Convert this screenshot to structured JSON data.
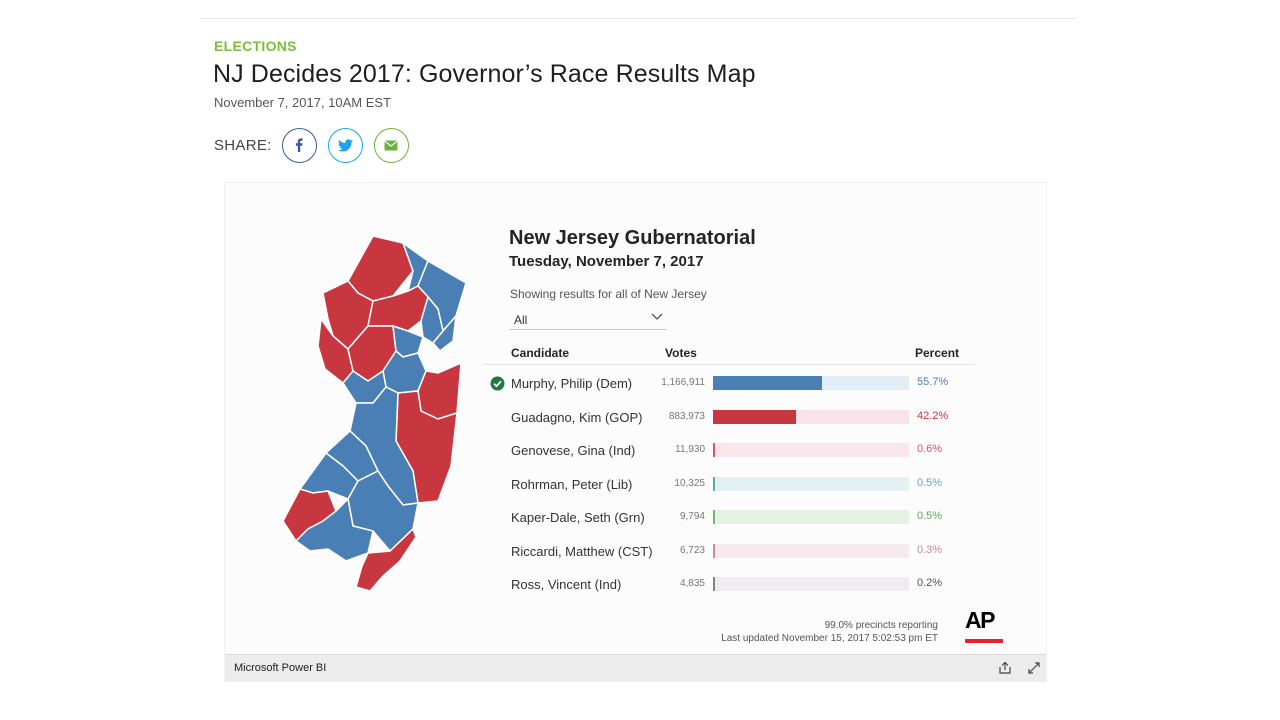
{
  "article": {
    "kicker": "ELECTIONS",
    "title": "NJ Decides 2017: Governor’s Race Results Map",
    "date": "November 7, 2017, 10AM EST"
  },
  "share": {
    "label": "SHARE:",
    "buttons": [
      {
        "icon": "facebook-icon",
        "color": "#3b5998"
      },
      {
        "icon": "twitter-icon",
        "color": "#1da1f2"
      },
      {
        "icon": "email-icon",
        "color": "#6ab23e"
      }
    ]
  },
  "colors": {
    "dem": "#4a7fb5",
    "gop": "#c8373f",
    "accent_green": "#7bbd3c"
  },
  "map": {
    "description_counties": {
      "dem_color": "#4a7fb5",
      "gop_color": "#c8373f"
    }
  },
  "viz": {
    "title": "New Jersey Gubernatorial",
    "subtitle": "Tuesday, November 7, 2017",
    "filter_label": "Showing results for all of New Jersey",
    "filter_value": "All",
    "columns": {
      "candidate": "Candidate",
      "votes": "Votes",
      "percent": "Percent"
    },
    "candidates": [
      {
        "name": "Murphy, Philip (Dem)",
        "votes": "1,166,911",
        "percent": "55.7%",
        "share": 0.557,
        "winner": true,
        "bar": "#4a7fb5",
        "track": "#e3edf5",
        "pctColor": "#4a7fb5"
      },
      {
        "name": "Guadagno, Kim (GOP)",
        "votes": "883,973",
        "percent": "42.2%",
        "share": 0.422,
        "winner": false,
        "bar": "#c8373f",
        "track": "#f8e4e6",
        "pctColor": "#c8373f"
      },
      {
        "name": "Genovese, Gina (Ind)",
        "votes": "11,930",
        "percent": "0.6%",
        "share": 0.006,
        "winner": false,
        "bar": "#d9536a",
        "track": "#fbe6ea",
        "pctColor": "#d9536a"
      },
      {
        "name": "Rohrman, Peter (Lib)",
        "votes": "10,325",
        "percent": "0.5%",
        "share": 0.005,
        "winner": false,
        "bar": "#5ba7c0",
        "track": "#e3f1f4",
        "pctColor": "#5ba7c0"
      },
      {
        "name": "Kaper-Dale, Seth (Grn)",
        "votes": "9,794",
        "percent": "0.5%",
        "share": 0.005,
        "winner": false,
        "bar": "#6fb86b",
        "track": "#e6f3e4",
        "pctColor": "#5fa85c"
      },
      {
        "name": "Riccardi, Matthew (CST)",
        "votes": "6,723",
        "percent": "0.3%",
        "share": 0.003,
        "winner": false,
        "bar": "#c98a9a",
        "track": "#f7eaee",
        "pctColor": "#c98a9a"
      },
      {
        "name": "Ross, Vincent (Ind)",
        "votes": "4,835",
        "percent": "0.2%",
        "share": 0.002,
        "winner": false,
        "bar": "#8a7f86",
        "track": "#efebee",
        "pctColor": "#555555"
      }
    ],
    "reporting": "99.0% precincts reporting",
    "updated": "Last updated November 15, 2017 5:02:53 pm ET",
    "ap_logo": "AP"
  },
  "footer": {
    "label": "Microsoft Power BI",
    "icons": [
      "share-report-icon",
      "fullscreen-icon"
    ]
  }
}
